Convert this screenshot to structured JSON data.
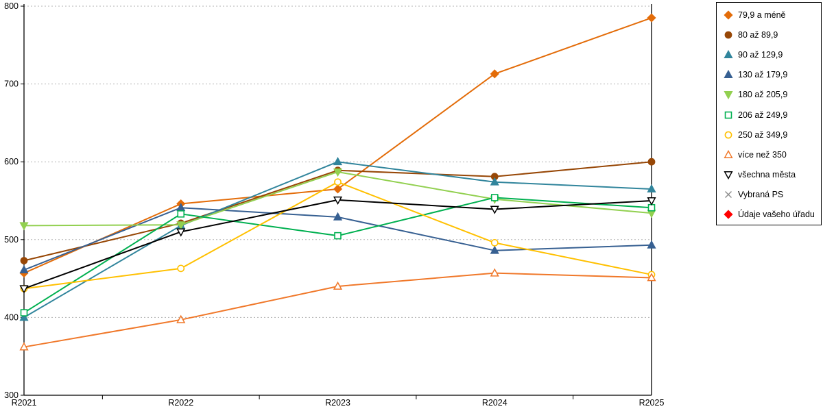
{
  "chart_data": {
    "type": "line",
    "title": "",
    "xlabel": "",
    "ylabel": "",
    "categories": [
      "R2021",
      "R2022",
      "R2023",
      "R2024",
      "R2025"
    ],
    "y_tick_labels": [
      "300",
      "400",
      "500",
      "600",
      "700",
      "800"
    ],
    "ylim": [
      300,
      800
    ],
    "ytick_step": 100,
    "grid": "dashed-horizontal",
    "legend_position": "right",
    "series": [
      {
        "name": "79,9 a méně",
        "color": "#E36C09",
        "marker": "diamond",
        "filled": true,
        "values": [
          457,
          546,
          565,
          713,
          785
        ]
      },
      {
        "name": "80 až 89,9",
        "color": "#974706",
        "marker": "circle",
        "filled": true,
        "values": [
          473,
          521,
          589,
          581,
          600
        ]
      },
      {
        "name": "90 až 129,9",
        "color": "#31859C",
        "marker": "triangle-up",
        "filled": true,
        "values": [
          400,
          518,
          600,
          574,
          565
        ]
      },
      {
        "name": "130 až 179,9",
        "color": "#376092",
        "marker": "triangle-up",
        "filled": true,
        "values": [
          461,
          541,
          529,
          486,
          493
        ]
      },
      {
        "name": "180 až 205,9",
        "color": "#92D050",
        "marker": "triangle-down",
        "filled": true,
        "values": [
          518,
          519,
          587,
          552,
          534
        ]
      },
      {
        "name": "206 až 249,9",
        "color": "#00B050",
        "marker": "square",
        "filled": false,
        "values": [
          406,
          533,
          505,
          554,
          541
        ]
      },
      {
        "name": "250 až 349,9",
        "color": "#FFC000",
        "marker": "circle",
        "filled": false,
        "values": [
          437,
          463,
          574,
          496,
          455
        ]
      },
      {
        "name": "více než 350",
        "color": "#F0782A",
        "marker": "triangle-up",
        "filled": false,
        "values": [
          362,
          397,
          440,
          457,
          451
        ]
      },
      {
        "name": "všechna města",
        "color": "#000000",
        "marker": "triangle-down",
        "filled": false,
        "values": [
          437,
          510,
          551,
          539,
          550
        ]
      },
      {
        "name": "Vybraná PS",
        "color": "#8C8C8C",
        "marker": "x-cross",
        "filled": false,
        "values": []
      },
      {
        "name": "Údaje vašeho úřadu",
        "color": "#FF0000",
        "marker": "diamond",
        "filled": true,
        "values": []
      }
    ],
    "colors": {
      "gridline": "#B3B3B3",
      "axis": "#000000",
      "background": "#FFFFFF"
    }
  }
}
